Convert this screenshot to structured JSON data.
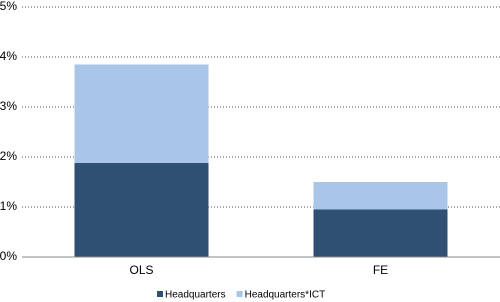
{
  "chart_data": {
    "type": "stacked_bar",
    "categories": [
      "OLS",
      "FE"
    ],
    "series": [
      {
        "name": "Headquarters",
        "color": "#2f4f73",
        "values": [
          1.88,
          0.95
        ]
      },
      {
        "name": "Headquarters*ICT",
        "color": "#a9c5e8",
        "values": [
          1.97,
          0.55
        ]
      }
    ],
    "ylim": [
      0,
      5
    ],
    "yticks": [
      {
        "value": 0,
        "label": "0%"
      },
      {
        "value": 1,
        "label": "1%"
      },
      {
        "value": 2,
        "label": "2%"
      },
      {
        "value": 3,
        "label": "3%"
      },
      {
        "value": 4,
        "label": "4%"
      },
      {
        "value": 5,
        "label": "5%"
      }
    ],
    "grid": true,
    "legend": "bottom"
  }
}
